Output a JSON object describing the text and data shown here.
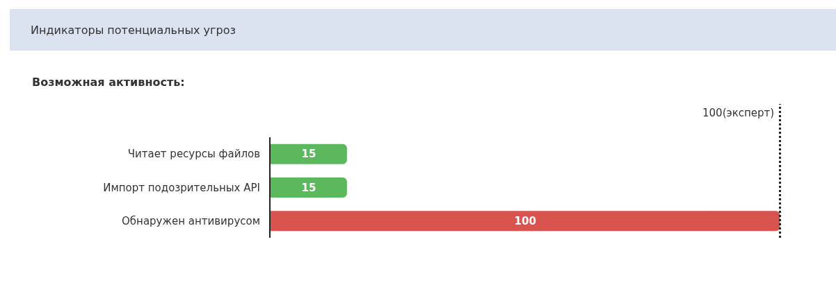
{
  "chart_data": {
    "type": "bar",
    "orientation": "horizontal",
    "title": "Индикаторы потенциальных угроз",
    "subtitle": "Возможная активность:",
    "categories": [
      "Читает ресурсы файлов",
      "Импорт подозрительных API",
      "Обнаружен антивирусом"
    ],
    "values": [
      15,
      15,
      100
    ],
    "colors": [
      "#5cb85c",
      "#5cb85c",
      "#d9534f"
    ],
    "data_labels": true,
    "legend": false,
    "tick_labels": "y",
    "ref_lines": [
      {
        "axis": "x",
        "value": 100,
        "label": "100(эксперт)",
        "color": "#222222",
        "line_style": "dotted"
      }
    ]
  }
}
